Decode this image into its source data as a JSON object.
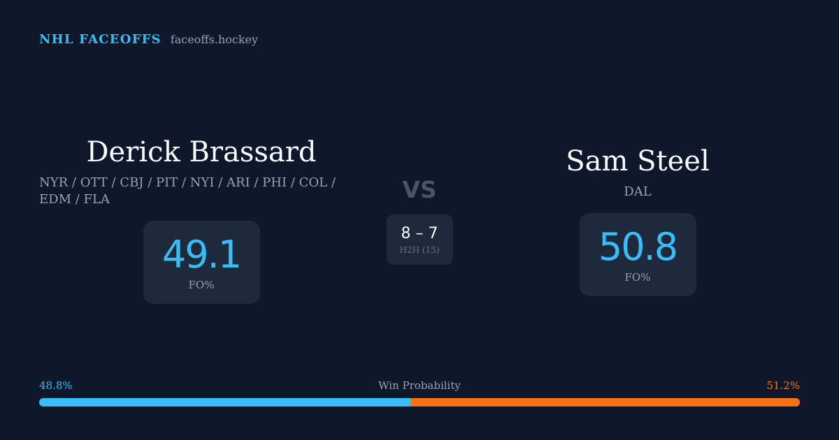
{
  "brand": {
    "name": "NHL FACEOFFS",
    "url": "faceoffs.hockey",
    "accent_color": "#38bdf8"
  },
  "player_left": {
    "name": "Derick Brassard",
    "teams": "NYR / OTT / CBJ / PIT / NYI / ARI / PHI / COL / EDM / FLA",
    "fo_pct": "49.1",
    "fo_label": "FO%"
  },
  "player_right": {
    "name": "Sam Steel",
    "teams": "DAL",
    "fo_pct": "50.8",
    "fo_label": "FO%"
  },
  "versus": {
    "label": "VS",
    "h2h_score": "8 – 7",
    "h2h_label": "H2H (15)"
  },
  "win_probability": {
    "title": "Win Probability",
    "left_label": "48.8%",
    "right_label": "51.2%",
    "left_fraction": 0.488,
    "left_color": "#38bdf8",
    "right_color": "#f97316"
  }
}
